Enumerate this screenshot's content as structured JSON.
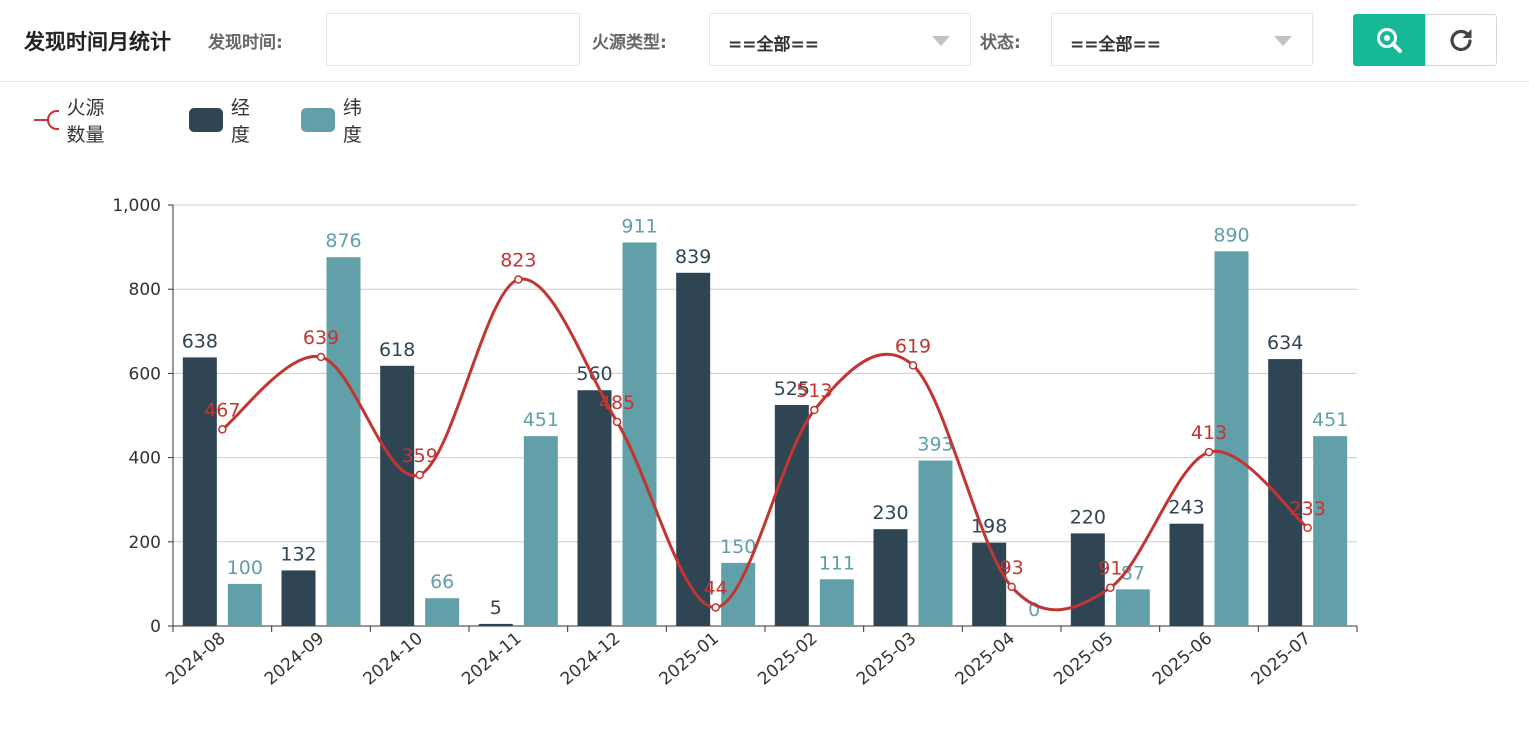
{
  "toolbar": {
    "title": "发现时间月统计",
    "time_label": "发现时间:",
    "time_value": "",
    "source_type_label": "火源类型:",
    "source_type_value": "==全部==",
    "status_label": "状态:",
    "status_value": "==全部==",
    "search_icon": "search-icon",
    "refresh_icon": "refresh-icon"
  },
  "colors": {
    "accent": "#17b897",
    "line": "#c23531",
    "longitude": "#2f4554",
    "latitude": "#61a0a8",
    "axis": "#333333",
    "grid": "#cccccc"
  },
  "chart_data": {
    "type": "bar",
    "categories": [
      "2024-08",
      "2024-09",
      "2024-10",
      "2024-11",
      "2024-12",
      "2025-01",
      "2025-02",
      "2025-03",
      "2025-04",
      "2025-05",
      "2025-06",
      "2025-07"
    ],
    "ylim": [
      0,
      1000
    ],
    "yticks": [
      "0",
      "200",
      "400",
      "600",
      "800",
      "1,000"
    ],
    "ytick_values": [
      0,
      200,
      400,
      600,
      800,
      1000
    ],
    "legend_position": "top-left",
    "grid": true,
    "series": [
      {
        "name": "火源数量",
        "type": "line",
        "smooth": true,
        "values": [
          467,
          639,
          359,
          823,
          485,
          44,
          513,
          619,
          93,
          91,
          413,
          233
        ]
      },
      {
        "name": "经度",
        "type": "bar",
        "values": [
          638,
          132,
          618,
          5,
          560,
          839,
          525,
          230,
          198,
          220,
          243,
          634
        ]
      },
      {
        "name": "纬度",
        "type": "bar",
        "values": [
          100,
          876,
          66,
          451,
          911,
          150,
          111,
          393,
          0,
          87,
          890,
          451
        ]
      }
    ]
  }
}
